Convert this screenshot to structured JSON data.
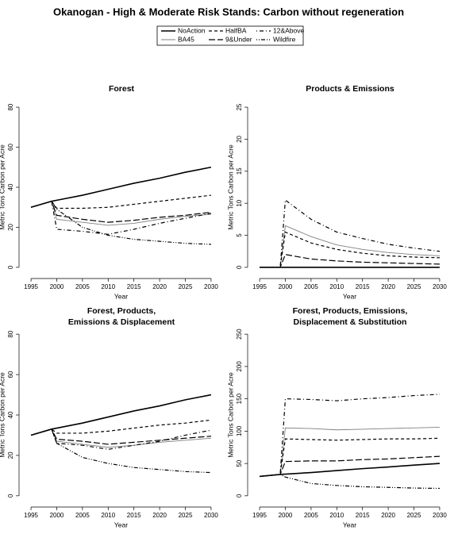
{
  "title": "Okanogan  - High & Moderate Risk Stands: Carbon without regeneration",
  "chart_data": [
    {
      "type": "line",
      "title": [
        "Forest"
      ],
      "xlabel": "Year",
      "ylabel": "Metric Tons Carbon per Acre",
      "x": [
        1995,
        1999,
        2000,
        2005,
        2010,
        2015,
        2020,
        2025,
        2030
      ],
      "xlim": [
        1993.6,
        2031.4
      ],
      "xticks": [
        1995,
        2000,
        2005,
        2010,
        2015,
        2020,
        2025,
        2030
      ],
      "ylim": [
        -3.2,
        83.2
      ],
      "yticks": [
        0,
        20,
        40,
        60,
        80
      ],
      "series": [
        {
          "name": "NoAction",
          "color": "#000000",
          "dash": "solid",
          "values": [
            30,
            33,
            33.5,
            36,
            39,
            42,
            44.5,
            47.5,
            50
          ]
        },
        {
          "name": "BA45",
          "color": "#808080",
          "dash": "solid",
          "values": [
            30,
            33,
            24,
            22.5,
            21,
            22,
            24,
            25.5,
            26.5
          ]
        },
        {
          "name": "HalfBA",
          "color": "#000000",
          "dash": "dashed",
          "values": [
            30,
            33,
            29.5,
            29.5,
            30,
            31.5,
            33,
            34.5,
            36
          ]
        },
        {
          "name": "9&Under",
          "color": "#000000",
          "dash": "longdash",
          "values": [
            30,
            33,
            26,
            24,
            22.5,
            23.5,
            25,
            26,
            27.5
          ]
        },
        {
          "name": "12&Above",
          "color": "#000000",
          "dash": "dotdash",
          "values": [
            30,
            33,
            19,
            18,
            16.5,
            19,
            22,
            24.5,
            27
          ]
        },
        {
          "name": "Wildfire",
          "color": "#000000",
          "dash": "dotdotdash",
          "values": [
            30,
            33,
            29,
            20,
            16,
            14,
            13,
            12,
            11.5
          ]
        }
      ]
    },
    {
      "type": "line",
      "title": [
        "Products & Emissions"
      ],
      "xlabel": "Year",
      "ylabel": "Metric Tons Carbon per Acre",
      "x": [
        1995,
        1999,
        2000,
        2005,
        2010,
        2015,
        2020,
        2025,
        2030
      ],
      "xlim": [
        1993.6,
        2031.4
      ],
      "xticks": [
        1995,
        2000,
        2005,
        2010,
        2015,
        2020,
        2025,
        2030
      ],
      "ylim": [
        -1,
        26
      ],
      "yticks": [
        0,
        5,
        10,
        15,
        20,
        25
      ],
      "series": [
        {
          "name": "NoAction",
          "color": "#000000",
          "dash": "solid",
          "values": [
            0,
            0,
            0,
            0,
            0,
            0,
            0,
            0,
            0
          ]
        },
        {
          "name": "BA45",
          "color": "#808080",
          "dash": "solid",
          "values": [
            0,
            0,
            6.5,
            4.8,
            3.5,
            2.8,
            2.3,
            2,
            1.8
          ]
        },
        {
          "name": "HalfBA",
          "color": "#000000",
          "dash": "dashed",
          "values": [
            0,
            0,
            5.5,
            3.8,
            2.8,
            2.2,
            1.8,
            1.6,
            1.5
          ]
        },
        {
          "name": "9&Under",
          "color": "#000000",
          "dash": "longdash",
          "values": [
            0,
            0,
            2,
            1.3,
            1,
            0.8,
            0.7,
            0.6,
            0.5
          ]
        },
        {
          "name": "12&Above",
          "color": "#000000",
          "dash": "dotdash",
          "values": [
            0,
            0,
            10.5,
            7.5,
            5.5,
            4.5,
            3.6,
            3,
            2.5
          ]
        },
        {
          "name": "Wildfire",
          "color": "#000000",
          "dash": "dotdotdash",
          "values": [
            0,
            0,
            0,
            0,
            0,
            0,
            0,
            0,
            0
          ]
        }
      ]
    },
    {
      "type": "line",
      "title": [
        "Forest, Products,",
        "Emissions & Displacement"
      ],
      "xlabel": "Year",
      "ylabel": "Metric Tons Carbon per Acre",
      "x": [
        1995,
        1999,
        2000,
        2005,
        2010,
        2015,
        2020,
        2025,
        2030
      ],
      "xlim": [
        1993.6,
        2031.4
      ],
      "xticks": [
        1995,
        2000,
        2005,
        2010,
        2015,
        2020,
        2025,
        2030
      ],
      "ylim": [
        -3.2,
        83.2
      ],
      "yticks": [
        0,
        20,
        40,
        60,
        80
      ],
      "series": [
        {
          "name": "NoAction",
          "color": "#000000",
          "dash": "solid",
          "values": [
            30,
            33,
            33.5,
            36,
            39,
            42,
            44.5,
            47.5,
            50
          ]
        },
        {
          "name": "BA45",
          "color": "#808080",
          "dash": "solid",
          "values": [
            30,
            33,
            27,
            25.5,
            24,
            25,
            26.5,
            27.5,
            28.5
          ]
        },
        {
          "name": "HalfBA",
          "color": "#000000",
          "dash": "dashed",
          "values": [
            30,
            33,
            31,
            31,
            32,
            33.5,
            35,
            36,
            37.5
          ]
        },
        {
          "name": "9&Under",
          "color": "#000000",
          "dash": "longdash",
          "values": [
            30,
            33,
            28,
            27,
            25.5,
            26.5,
            27.5,
            28.5,
            29.5
          ]
        },
        {
          "name": "12&Above",
          "color": "#000000",
          "dash": "dotdash",
          "values": [
            30,
            33,
            26,
            25,
            23,
            25,
            27,
            30,
            32.5
          ]
        },
        {
          "name": "Wildfire",
          "color": "#000000",
          "dash": "dotdotdash",
          "values": [
            30,
            33,
            26,
            19,
            16,
            14,
            13,
            12,
            11.5
          ]
        }
      ]
    },
    {
      "type": "line",
      "title": [
        "Forest, Products, Emissions,",
        "Displacement & Substitution"
      ],
      "xlabel": "Year",
      "ylabel": "Metric Tons Carbon per Acre",
      "x": [
        1995,
        1999,
        2000,
        2005,
        2010,
        2015,
        2020,
        2025,
        2030
      ],
      "xlim": [
        1993.6,
        2031.4
      ],
      "xticks": [
        1995,
        2000,
        2005,
        2010,
        2015,
        2020,
        2025,
        2030
      ],
      "ylim": [
        -10,
        260
      ],
      "yticks": [
        0,
        50,
        100,
        150,
        200,
        250
      ],
      "series": [
        {
          "name": "NoAction",
          "color": "#000000",
          "dash": "solid",
          "values": [
            30,
            33,
            33.5,
            36,
            39,
            42,
            44.5,
            47.5,
            50
          ]
        },
        {
          "name": "BA45",
          "color": "#808080",
          "dash": "solid",
          "values": [
            30,
            33,
            105,
            104,
            102,
            103,
            104,
            105,
            106
          ]
        },
        {
          "name": "HalfBA",
          "color": "#000000",
          "dash": "dashed",
          "values": [
            30,
            33,
            88,
            87,
            86,
            87,
            88,
            88,
            89
          ]
        },
        {
          "name": "9&Under",
          "color": "#000000",
          "dash": "longdash",
          "values": [
            30,
            33,
            53,
            54,
            54,
            56,
            57,
            59,
            61
          ]
        },
        {
          "name": "12&Above",
          "color": "#000000",
          "dash": "dotdash",
          "values": [
            30,
            33,
            150,
            149,
            147,
            150,
            152,
            155,
            157
          ]
        },
        {
          "name": "Wildfire",
          "color": "#000000",
          "dash": "dotdotdash",
          "values": [
            30,
            33,
            29,
            19,
            16,
            14,
            13,
            12,
            11.5
          ]
        }
      ]
    }
  ]
}
